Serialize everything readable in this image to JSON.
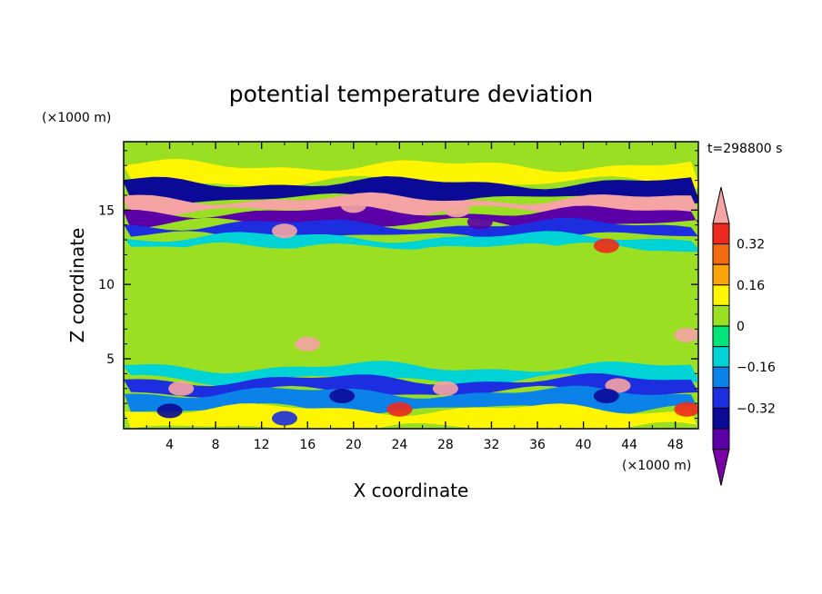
{
  "chart_data": {
    "type": "heatmap",
    "title": "potential temperature deviation",
    "xlabel": "X coordinate",
    "ylabel": "Z coordinate",
    "x_unit": "(×1000 m)",
    "y_unit": "(×1000 m)",
    "time_label": "t=298800 s",
    "xlim": [
      0,
      50
    ],
    "ylim": [
      0.3,
      19.6
    ],
    "x_ticks": [
      4,
      8,
      12,
      16,
      20,
      24,
      28,
      32,
      36,
      40,
      44,
      48
    ],
    "y_ticks": [
      5,
      10,
      15
    ],
    "colorbar": {
      "levels": [
        -0.48,
        -0.4,
        -0.32,
        -0.24,
        -0.16,
        -0.08,
        0,
        0.08,
        0.16,
        0.24,
        0.32,
        0.4
      ],
      "labeled": [
        0.32,
        0.16,
        0,
        -0.16,
        -0.32
      ],
      "labels": [
        "0.32",
        "0.16",
        "0",
        "−0.16",
        "−0.32"
      ],
      "colors_top_to_bottom": [
        "#f5a3a3",
        "#ee2a1e",
        "#f36a10",
        "#fba40a",
        "#fff500",
        "#9bdf22",
        "#00e57a",
        "#00d3d6",
        "#0a82e8",
        "#1c2ee0",
        "#0a0a96",
        "#5a00a6",
        "#7a00a8"
      ]
    },
    "bands": [
      {
        "z": 18.5,
        "value": 0.04
      },
      {
        "z": 17.5,
        "value": 0.08
      },
      {
        "z": 16.2,
        "value": -0.36
      },
      {
        "z": 15.3,
        "value": 0.4
      },
      {
        "z": 14.5,
        "value": -0.44
      },
      {
        "z": 13.6,
        "value": -0.28
      },
      {
        "z": 12.8,
        "value": -0.1
      },
      {
        "z": 12.0,
        "value": 0.02
      },
      {
        "z": 10.0,
        "value": 0.06
      },
      {
        "z": 7.0,
        "value": 0.04
      },
      {
        "z": 5.0,
        "value": 0.0
      },
      {
        "z": 3.9,
        "value": -0.12
      },
      {
        "z": 3.3,
        "value": -0.32
      },
      {
        "z": 2.2,
        "value": -0.18
      },
      {
        "z": 1.0,
        "value": 0.12
      }
    ]
  }
}
